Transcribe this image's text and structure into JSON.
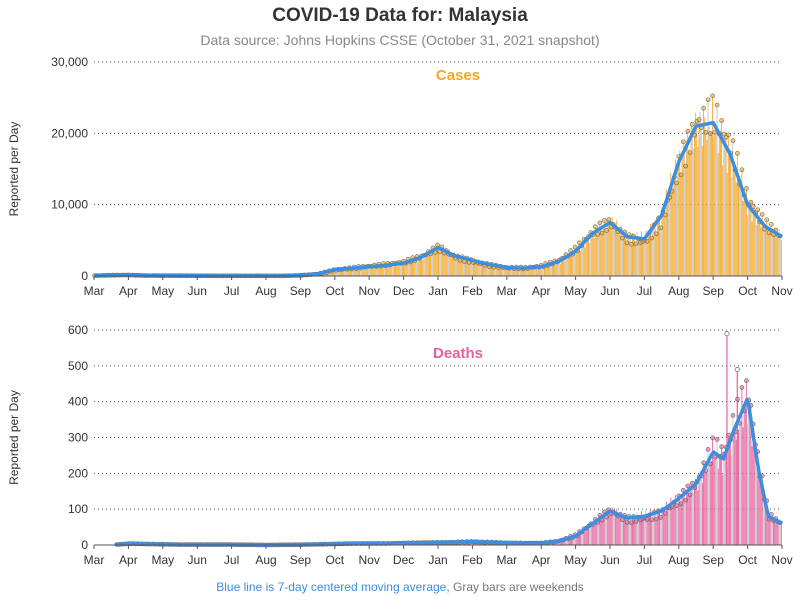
{
  "title": "COVID-19 Data for: Malaysia",
  "subtitle": "Data source: Johns Hopkins CSSE (October 31, 2021 snapshot)",
  "footnote": {
    "blue_text": "Blue line is 7-day centered moving average,",
    "gray_text": "Gray bars are weekends"
  },
  "colors": {
    "cases_bar": "#f5a623",
    "cases_title": "#f5a623",
    "deaths_bar": "#e8609f",
    "deaths_title": "#e8609f",
    "moving_average": "#3b8ee0",
    "weekend_bar": "#999999"
  },
  "chart_data": [
    {
      "type": "bar",
      "panel_title": "Cases",
      "ylabel": "Reported per Day",
      "ylim": [
        0,
        30000
      ],
      "yticks": [
        0,
        10000,
        20000,
        30000
      ],
      "ytick_labels": [
        "0",
        "10,000",
        "20,000",
        "30,000"
      ],
      "x_month_labels": [
        "Mar",
        "Apr",
        "May",
        "Jun",
        "Jul",
        "Aug",
        "Sep",
        "Oct",
        "Nov",
        "Dec",
        "Jan",
        "Feb",
        "Mar",
        "Apr",
        "May",
        "Jun",
        "Jul",
        "Aug",
        "Sep",
        "Oct",
        "Nov"
      ],
      "x_range_months": [
        0,
        20
      ],
      "grid": "horizontal dotted",
      "series": [
        {
          "month_offset": [
            0,
            0.5,
            1,
            1.5,
            2,
            2.5,
            3,
            3.5,
            4,
            4.5,
            5,
            5.5,
            6,
            6.5,
            7,
            7.5,
            8,
            8.5,
            9,
            9.5,
            10,
            10.5,
            11,
            11.5,
            12,
            12.5,
            13,
            13.5,
            14,
            14.5,
            15,
            15.5,
            16,
            16.5,
            17,
            17.5,
            18,
            18.5,
            19,
            19.5,
            20
          ],
          "values": [
            50,
            120,
            150,
            60,
            50,
            40,
            30,
            20,
            20,
            20,
            20,
            20,
            100,
            300,
            900,
            1100,
            1300,
            1500,
            1800,
            2600,
            4000,
            2800,
            2200,
            1600,
            1200,
            1100,
            1300,
            2000,
            3500,
            6000,
            7500,
            5500,
            5200,
            8500,
            16000,
            21000,
            21500,
            17000,
            10000,
            7000,
            5500
          ]
        }
      ]
    },
    {
      "type": "bar",
      "panel_title": "Deaths",
      "ylabel": "Reported per Day",
      "ylim": [
        0,
        600
      ],
      "yticks": [
        0,
        100,
        200,
        300,
        400,
        500,
        600
      ],
      "ytick_labels": [
        "0",
        "100",
        "200",
        "300",
        "400",
        "500",
        "600"
      ],
      "x_month_labels": [
        "Mar",
        "Apr",
        "May",
        "Jun",
        "Jul",
        "Aug",
        "Sep",
        "Oct",
        "Nov",
        "Dec",
        "Jan",
        "Feb",
        "Mar",
        "Apr",
        "May",
        "Jun",
        "Jul",
        "Aug",
        "Sep",
        "Oct",
        "Nov"
      ],
      "x_range_months": [
        0,
        20
      ],
      "grid": "horizontal dotted",
      "series": [
        {
          "month_offset": [
            0.6,
            1,
            1.5,
            2,
            2.5,
            3,
            4,
            5,
            6,
            6.5,
            7,
            7.5,
            8,
            8.5,
            9,
            9.5,
            10,
            10.5,
            11,
            11.5,
            12,
            12.5,
            13,
            13.5,
            14,
            14.5,
            15,
            15.5,
            16,
            16.5,
            17,
            17.5,
            18,
            18.3,
            18.6,
            19,
            19.3,
            19.6,
            20
          ],
          "values": [
            1,
            4,
            3,
            2,
            1,
            1,
            1,
            0,
            1,
            2,
            3,
            4,
            4,
            4,
            5,
            6,
            7,
            8,
            10,
            8,
            6,
            5,
            5,
            10,
            25,
            60,
            95,
            75,
            80,
            95,
            130,
            170,
            260,
            240,
            320,
            410,
            220,
            80,
            60
          ],
          "peaks": [
            {
              "month_offset": 18.4,
              "value": 590
            },
            {
              "month_offset": 18.7,
              "value": 490
            }
          ]
        }
      ]
    }
  ]
}
